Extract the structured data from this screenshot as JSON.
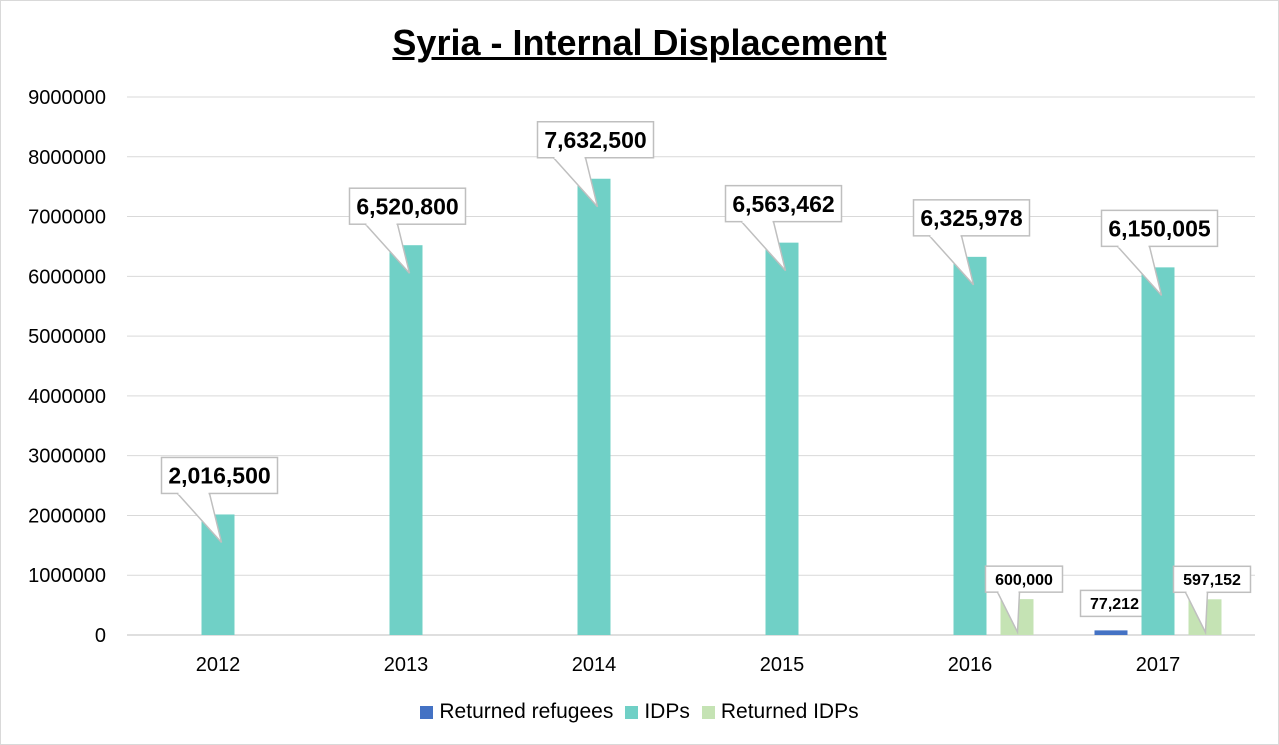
{
  "chart_data": {
    "type": "bar",
    "title": "Syria - Internal Displacement",
    "xlabel": "",
    "ylabel": "",
    "categories": [
      "2012",
      "2013",
      "2014",
      "2015",
      "2016",
      "2017"
    ],
    "ylim": [
      0,
      9000000
    ],
    "yticks": [
      0,
      1000000,
      2000000,
      3000000,
      4000000,
      5000000,
      6000000,
      7000000,
      8000000,
      9000000
    ],
    "ytick_labels": [
      "0",
      "1000000",
      "2000000",
      "3000000",
      "4000000",
      "5000000",
      "6000000",
      "7000000",
      "8000000",
      "9000000"
    ],
    "grid": true,
    "legend_position": "bottom",
    "series": [
      {
        "name": "Returned refugees",
        "color": "#4472c4",
        "values": [
          null,
          null,
          null,
          null,
          null,
          77212
        ],
        "data_labels": [
          "",
          "",
          "",
          "",
          "",
          "77,212"
        ]
      },
      {
        "name": "IDPs",
        "color": "#70d0c6",
        "values": [
          2016500,
          6520800,
          7632500,
          6563462,
          6325978,
          6150005
        ],
        "data_labels": [
          "2,016,500",
          "6,520,800",
          "7,632,500",
          "6,563,462",
          "6,325,978",
          "6,150,005"
        ]
      },
      {
        "name": "Returned IDPs",
        "color": "#c5e3b4",
        "values": [
          null,
          null,
          null,
          null,
          600000,
          597152
        ],
        "data_labels": [
          "",
          "",
          "",
          "",
          "600,000",
          "597,152"
        ]
      }
    ]
  }
}
